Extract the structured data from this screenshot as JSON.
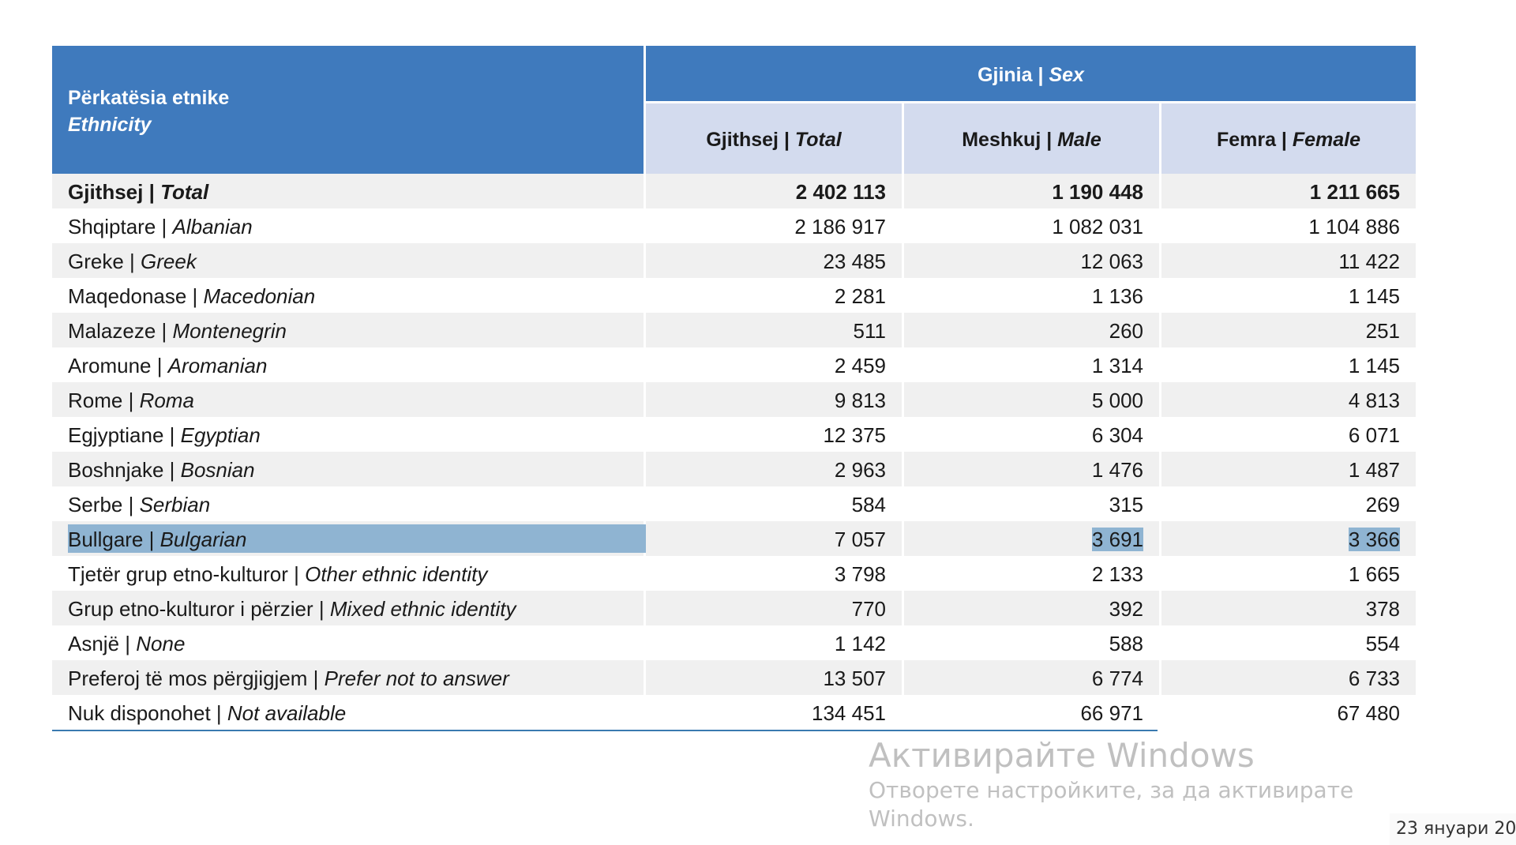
{
  "header": {
    "ethnicity_sq": "Përkatësia etnike",
    "ethnicity_en": "Ethnicity",
    "sex_sq": "Gjinia | ",
    "sex_en": "Sex",
    "total_sq": "Gjithsej | ",
    "total_en": "Total",
    "male_sq": "Meshkuj | ",
    "male_en": "Male",
    "female_sq": "Femra | ",
    "female_en": "Female"
  },
  "rows": [
    {
      "sq": "Gjithsej | ",
      "en": "Total",
      "total": "2 402 113",
      "male": "1 190 448",
      "female": "1 211 665"
    },
    {
      "sq": "Shqiptare | ",
      "en": "Albanian",
      "total": "2 186 917",
      "male": "1 082 031",
      "female": "1 104 886"
    },
    {
      "sq": "Greke | ",
      "en": "Greek",
      "total": "23 485",
      "male": "12 063",
      "female": "11 422"
    },
    {
      "sq": "Maqedonase | ",
      "en": "Macedonian",
      "total": "2 281",
      "male": "1 136",
      "female": "1 145"
    },
    {
      "sq": "Malazeze | ",
      "en": "Montenegrin",
      "total": "511",
      "male": "260",
      "female": "251"
    },
    {
      "sq": "Aromune | ",
      "en": "Aromanian",
      "total": "2 459",
      "male": "1 314",
      "female": "1 145"
    },
    {
      "sq": "Rome | ",
      "en": "Roma",
      "total": "9 813",
      "male": "5 000",
      "female": "4 813"
    },
    {
      "sq": "Egjyptiane | ",
      "en": "Egyptian",
      "total": "12 375",
      "male": "6 304",
      "female": "6 071"
    },
    {
      "sq": "Boshnjake | ",
      "en": "Bosnian",
      "total": "2 963",
      "male": "1 476",
      "female": "1 487"
    },
    {
      "sq": "Serbe | ",
      "en": "Serbian",
      "total": "584",
      "male": "315",
      "female": "269"
    },
    {
      "sq": "Bullgare | ",
      "en": "Bulgarian",
      "total": "7 057",
      "male": "3 691",
      "female": "3 366"
    },
    {
      "sq": "Tjetër grup etno-kulturor | ",
      "en": "Other ethnic identity",
      "total": "3 798",
      "male": "2 133",
      "female": "1 665"
    },
    {
      "sq": "Grup etno-kulturor i përzier | ",
      "en": "Mixed ethnic identity",
      "total": "770",
      "male": "392",
      "female": "378"
    },
    {
      "sq": "Asnjë | ",
      "en": "None",
      "total": "1 142",
      "male": "588",
      "female": "554"
    },
    {
      "sq": "Preferoj të mos përgjigjem | ",
      "en": "Prefer not to answer",
      "total": "13 507",
      "male": "6 774",
      "female": "6 733"
    },
    {
      "sq": "Nuk disponohet | ",
      "en": "Not available",
      "total": "134 451",
      "male": "66 971",
      "female": "67 480"
    }
  ],
  "selected_row": "Bulgarian",
  "watermark": {
    "line1": "Активирайте Windows",
    "line2": "Отворете настройките, за да активирате",
    "line3": "Windows."
  },
  "clock": {
    "date": "23 януари 20"
  },
  "colors": {
    "header_blue": "#3f7abd",
    "subheader": "#d3dbee",
    "selection": "#8fb4d2"
  }
}
